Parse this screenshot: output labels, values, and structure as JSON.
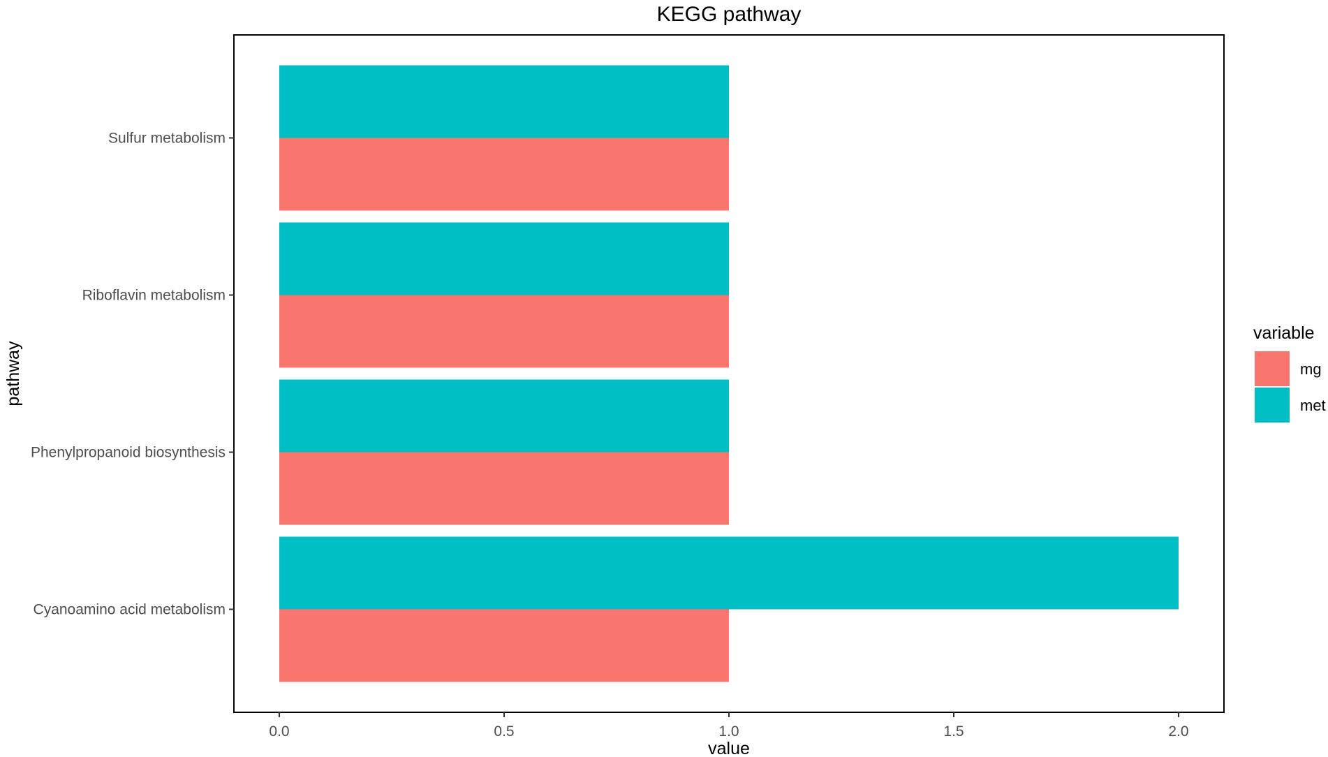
{
  "chart_data": {
    "type": "bar",
    "orientation": "horizontal",
    "title": "KEGG pathway",
    "xlabel": "value",
    "ylabel": "pathway",
    "xlim": [
      0,
      2.1
    ],
    "x_ticks": [
      "0.0",
      "0.5",
      "1.0",
      "1.5",
      "2.0"
    ],
    "categories": [
      "Sulfur metabolism",
      "Riboflavin metabolism",
      "Phenylpropanoid biosynthesis",
      "Cyanoamino acid metabolism"
    ],
    "series": [
      {
        "name": "mg",
        "color": "#F8766D",
        "values": [
          1,
          1,
          1,
          1
        ]
      },
      {
        "name": "met",
        "color": "#00BFC4",
        "values": [
          1,
          1,
          1,
          2
        ]
      }
    ],
    "legend": {
      "title": "variable",
      "position": "right"
    },
    "grid": false,
    "panel_border": true
  }
}
